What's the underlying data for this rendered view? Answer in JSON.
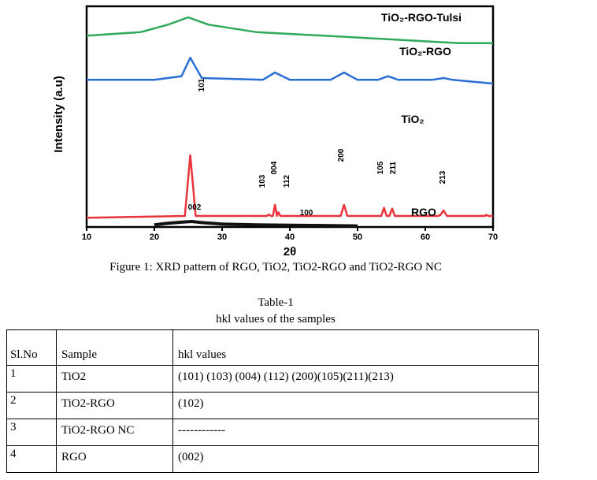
{
  "figure": {
    "ylabel": "Intensity (a.u)",
    "xlabel": "2θ",
    "caption": "Figure 1: XRD pattern of RGO, TiO2, TiO2-RGO and TiO2-RGO NC",
    "series_labels": [
      "TiO₂-RGO-Tulsi",
      "TiO₂-RGO",
      "TiO₂",
      "RGO"
    ],
    "peak_labels": [
      "101",
      "103",
      "004",
      "112",
      "200",
      "105",
      "211",
      "213",
      "002",
      "100"
    ],
    "colors": {
      "tulsi": "#2eaa5a",
      "tio2_rgo": "#2a6fd6",
      "tio2": "#e8333a",
      "rgo": "#111111"
    }
  },
  "chart_data": {
    "type": "line",
    "xlabel": "2θ",
    "ylabel": "Intensity (a.u)",
    "xlim": [
      10,
      70
    ],
    "xticks": [
      10,
      20,
      30,
      40,
      50,
      60,
      70
    ],
    "yticks_shown": false,
    "series": [
      {
        "name": "TiO₂-RGO-Tulsi",
        "x": [
          10,
          18,
          22,
          25,
          28,
          35,
          45,
          55,
          65,
          70
        ],
        "y": [
          5.2,
          5.3,
          5.5,
          5.7,
          5.5,
          5.3,
          5.2,
          5.1,
          5.0,
          5.0
        ]
      },
      {
        "name": "TiO₂-RGO",
        "x": [
          10,
          20,
          24,
          25.3,
          27,
          36,
          37.8,
          40,
          46,
          48,
          50,
          53,
          54.5,
          56,
          61,
          62.7,
          64,
          70
        ],
        "y": [
          4.0,
          4.0,
          4.1,
          4.6,
          4.05,
          4.0,
          4.2,
          4.0,
          4.0,
          4.2,
          4.0,
          4.0,
          4.1,
          4.0,
          4.0,
          4.05,
          4.0,
          3.9
        ]
      },
      {
        "name": "TiO₂",
        "x": [
          10,
          24.5,
          25.3,
          26.1,
          36.6,
          36.9,
          37.2,
          37.5,
          37.8,
          38.1,
          38.3,
          38.6,
          38.9,
          47.5,
          48.0,
          48.5,
          53.5,
          53.9,
          54.3,
          54.7,
          55.1,
          55.5,
          61.8,
          62.2,
          62.7,
          63.2,
          68.8,
          69.0,
          69.3,
          70
        ],
        "y": [
          0.25,
          0.3,
          1.95,
          0.3,
          0.3,
          0.34,
          0.3,
          0.3,
          0.6,
          0.3,
          0.4,
          0.3,
          0.3,
          0.3,
          0.6,
          0.3,
          0.3,
          0.52,
          0.3,
          0.3,
          0.5,
          0.3,
          0.3,
          0.32,
          0.45,
          0.3,
          0.3,
          0.33,
          0.3,
          0.3
        ]
      },
      {
        "name": "RGO",
        "x": [
          20,
          22,
          24,
          25.5,
          27,
          30,
          35,
          40,
          45,
          50
        ],
        "y": [
          0.06,
          0.1,
          0.13,
          0.15,
          0.12,
          0.08,
          0.06,
          0.05,
          0.04,
          0.03
        ]
      }
    ]
  },
  "table": {
    "title_line1": "Table-1",
    "title_line2": "hkl values of the samples",
    "headers": [
      "Sl.No",
      "Sample",
      "hkl values"
    ],
    "rows": [
      [
        "1",
        "TiO2",
        "(101) (103) (004) (112) (200)(105)(211)(213)"
      ],
      [
        "2",
        "TiO2-RGO",
        "(102)"
      ],
      [
        "3",
        "TiO2-RGO NC",
        "------------"
      ],
      [
        "4",
        "RGO",
        "(002)"
      ]
    ]
  }
}
